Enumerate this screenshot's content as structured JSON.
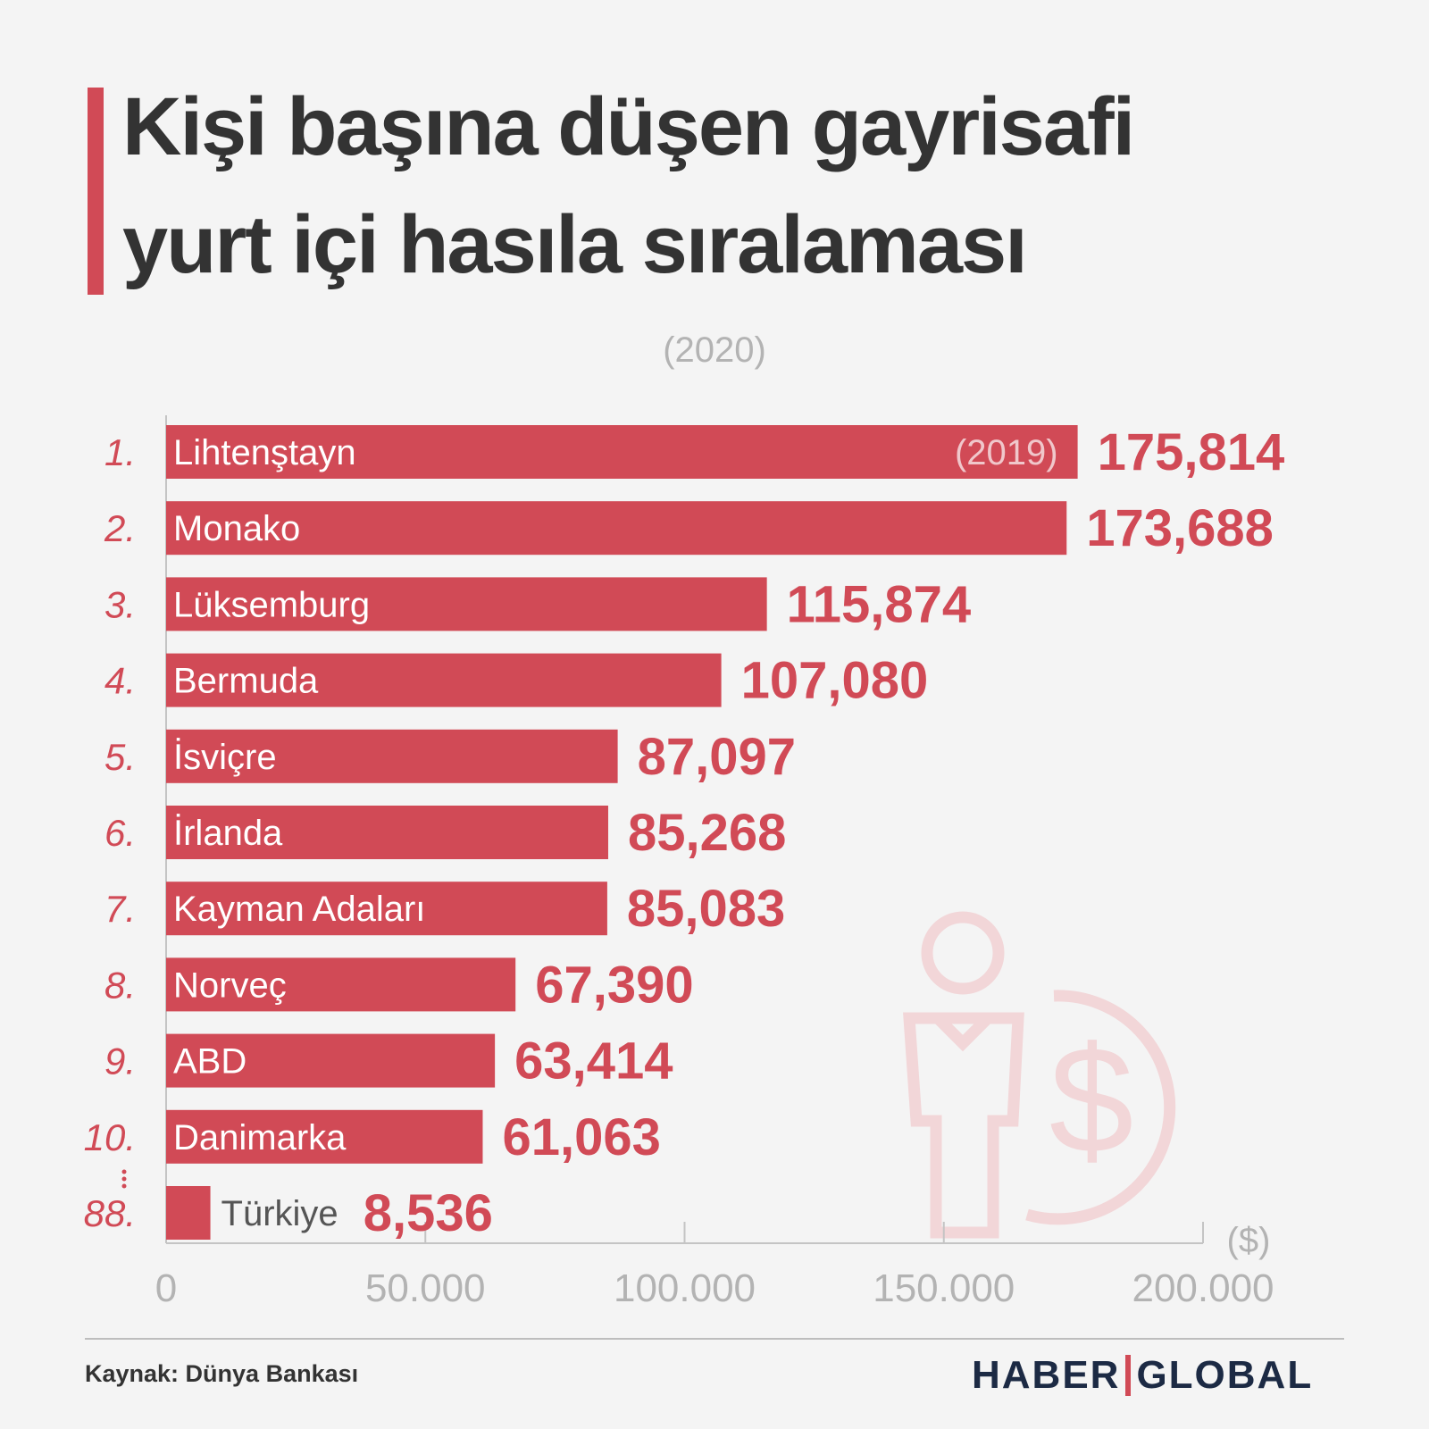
{
  "colors": {
    "accent": "#d14a56",
    "title": "#333333",
    "muted": "#b3b3b3",
    "watermark": "#f2d6d8",
    "logo": "#1c2a44"
  },
  "header": {
    "title_line1": "Kişi başına düşen gayrisafi",
    "title_line2": "yurt içi hasıla sıralaması",
    "subtitle": "(2020)"
  },
  "chart_data": {
    "type": "bar",
    "orientation": "horizontal",
    "unit_label": "($)",
    "xlim": [
      0,
      200000
    ],
    "x_ticks": [
      0,
      50000,
      100000,
      150000,
      200000
    ],
    "x_tick_labels": [
      "0",
      "50.000",
      "100.000",
      "150.000",
      "200.000"
    ],
    "grid": false,
    "bars": [
      {
        "rank": "1.",
        "name": "Lihtenştayn",
        "value": 175814,
        "label": "175,814",
        "note": "(2019)"
      },
      {
        "rank": "2.",
        "name": "Monako",
        "value": 173688,
        "label": "173,688"
      },
      {
        "rank": "3.",
        "name": "Lüksemburg",
        "value": 115874,
        "label": "115,874"
      },
      {
        "rank": "4.",
        "name": "Bermuda",
        "value": 107080,
        "label": "107,080"
      },
      {
        "rank": "5.",
        "name": "İsviçre",
        "value": 87097,
        "label": "87,097"
      },
      {
        "rank": "6.",
        "name": "İrlanda",
        "value": 85268,
        "label": "85,268"
      },
      {
        "rank": "7.",
        "name": "Kayman Adaları",
        "value": 85083,
        "label": "85,083"
      },
      {
        "rank": "8.",
        "name": "Norveç",
        "value": 67390,
        "label": "67,390"
      },
      {
        "rank": "9.",
        "name": "ABD",
        "value": 63414,
        "label": "63,414"
      },
      {
        "rank": "10.",
        "name": "Danimarka",
        "value": 61063,
        "label": "61,063"
      },
      {
        "rank": "88.",
        "name": "Türkiye",
        "value": 8536,
        "label": "8,536"
      }
    ]
  },
  "footer": {
    "source": "Kaynak: Dünya Bankası",
    "logo_left": "HABER",
    "logo_right": "GLOBAL"
  },
  "watermark_icon": "person-dollar-icon"
}
